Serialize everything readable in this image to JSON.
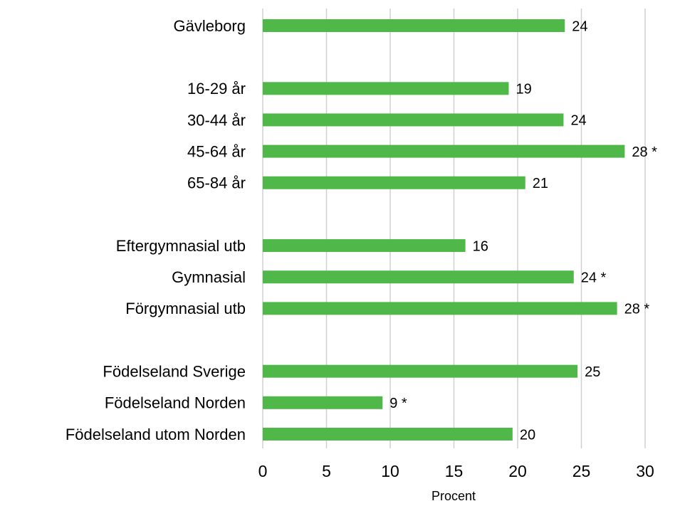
{
  "chart_data": {
    "type": "bar",
    "orientation": "horizontal",
    "categories": [
      "Gävleborg",
      null,
      "16-29 år",
      "30-44 år",
      "45-64 år",
      "65-84 år",
      null,
      "Eftergymnasial utb",
      "Gymnasial",
      "Förgymnasial utb",
      null,
      "Födelseland Sverige",
      "Födelseland Norden",
      "Födelseland utom Norden"
    ],
    "values": [
      23.7,
      null,
      19.3,
      23.6,
      28.4,
      20.6,
      null,
      15.9,
      24.4,
      27.8,
      null,
      24.7,
      9.4,
      19.6
    ],
    "value_labels": [
      "24",
      null,
      "19",
      "24",
      "28 *",
      "21",
      null,
      "16",
      "24 *",
      "28 *",
      null,
      "25",
      "9 *",
      "20"
    ],
    "color": "#50b848",
    "xlabel": "Procent",
    "xlim": [
      0,
      30
    ],
    "xticks": [
      0,
      5,
      10,
      15,
      20,
      25,
      30
    ],
    "grid": true
  }
}
